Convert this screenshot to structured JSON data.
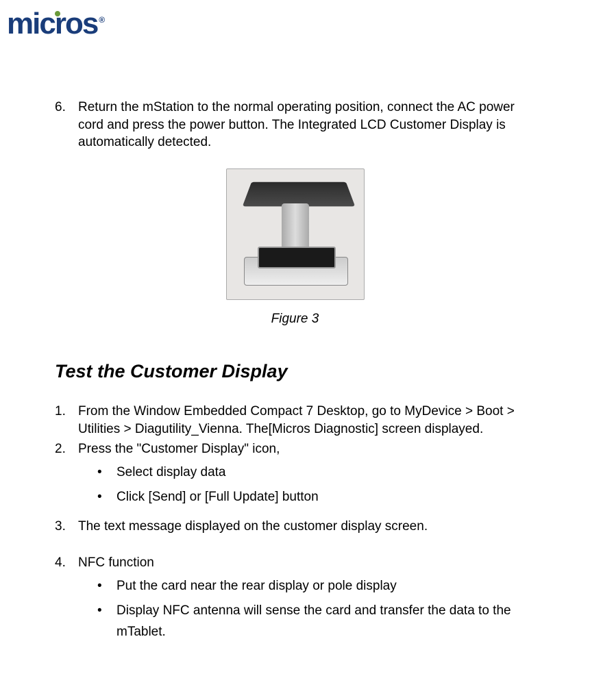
{
  "logo": {
    "text": "micros",
    "registered": "®"
  },
  "step6": {
    "num": "6.",
    "text": "Return the mStation to the normal operating position, connect the AC power cord and press the power button. The Integrated LCD Customer Display is automatically detected."
  },
  "figure": {
    "caption": "Figure 3"
  },
  "section_heading": "Test the Customer Display",
  "steps": {
    "s1": {
      "num": "1.",
      "text": "From the Window Embedded Compact 7 Desktop, go to MyDevice > Boot > Utilities > Diagutility_Vienna. The[Micros Diagnostic] screen displayed."
    },
    "s2": {
      "num": "2.",
      "text": "Press the \"Customer Display\" icon,",
      "b1": "Select display data",
      "b2": "Click [Send] or [Full Update] button"
    },
    "s3": {
      "num": "3.",
      "text": "The text message displayed on the customer display screen."
    },
    "s4": {
      "num": "4.",
      "text": "NFC function",
      "b1": "Put the card near the rear display or pole display",
      "b2": "Display NFC antenna will sense the card and transfer the data to the mTablet."
    }
  },
  "bullet_glyph": "•"
}
